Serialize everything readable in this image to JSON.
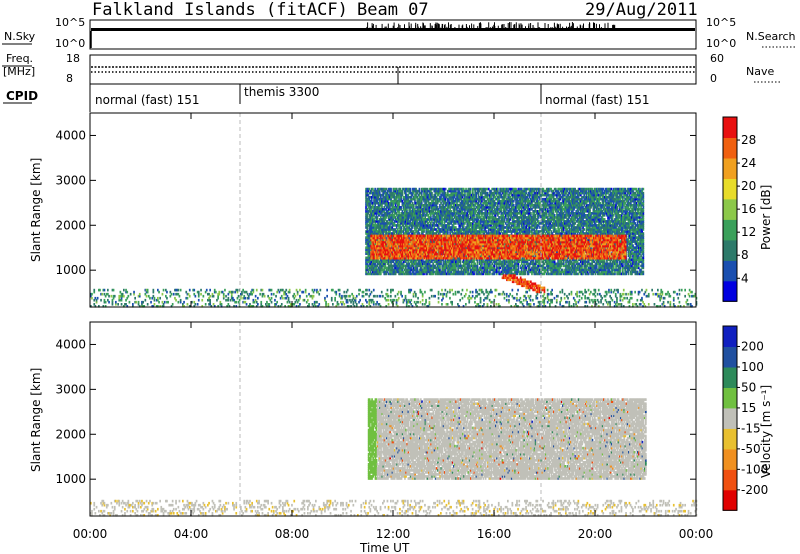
{
  "header": {
    "site": "Falkland Islands (fitACF)",
    "beam": "Beam 07",
    "date": "29/Aug/2011"
  },
  "top_panels": {
    "nsky": {
      "label": "N.Sky",
      "right_label": "N.Search",
      "ticks_left": [
        "10^5",
        "10^0"
      ],
      "ticks_right": [
        "10^5",
        "10^0"
      ]
    },
    "freq": {
      "label_line1": "Freq.",
      "label_line2": "[MHz]",
      "right_label": "Nave",
      "ticks_left": [
        "18",
        "8"
      ],
      "ticks_right": [
        "60",
        "0"
      ]
    },
    "cpid": {
      "label": "CPID",
      "segments": [
        {
          "label": "normal (fast) 151",
          "start_hour": 0,
          "end_hour": 6
        },
        {
          "label": "themis 3300",
          "start_hour": 6,
          "end_hour": 18
        },
        {
          "label": "normal (fast) 151",
          "start_hour": 18,
          "end_hour": 24
        }
      ]
    }
  },
  "chart_data": [
    {
      "type": "heatmap",
      "title": "",
      "quantity": "Power",
      "xlabel": "Time UT",
      "ylabel": "Slant Range [km]",
      "colorbar_label": "Power [dB]",
      "colorbar_ticks": [
        "28",
        "24",
        "20",
        "16",
        "12",
        "8",
        "4"
      ],
      "colorbar_range": [
        0,
        30
      ],
      "colors": [
        "#0000e0",
        "#1a4fb0",
        "#2d7a6a",
        "#3aa05a",
        "#8cc84a",
        "#e8dc2a",
        "#f0a020",
        "#f06010",
        "#e81010"
      ],
      "xlim": [
        0,
        24
      ],
      "ylim": [
        180,
        4500
      ],
      "y_ticks": [
        "1000",
        "2000",
        "3000",
        "4000"
      ],
      "regions": [
        {
          "name": "scatter band",
          "t0": 10.9,
          "t1": 21.9,
          "r_low": 900,
          "r_high": 2800,
          "mean": 8
        },
        {
          "name": "strong echo ridge",
          "t0": 11.1,
          "t1": 21.2,
          "r_low": 1250,
          "r_high": 1750,
          "mean": 26
        },
        {
          "name": "descending echo",
          "t0": 16.3,
          "t1": 18.0,
          "r_low": 500,
          "r_high": 900,
          "mean": 27
        },
        {
          "name": "near-range ground scatter",
          "t0": 0,
          "t1": 24,
          "r_low": 180,
          "r_high": 550,
          "mean": 10
        }
      ]
    },
    {
      "type": "heatmap",
      "title": "",
      "quantity": "Velocity",
      "xlabel": "Time UT",
      "ylabel": "Slant Range [km]",
      "colorbar_label": "Velocity [m s⁻¹]",
      "colorbar_ticks": [
        "200",
        "100",
        "50",
        "15",
        "-15",
        "-50",
        "-100",
        "-200"
      ],
      "colorbar_range": [
        -250,
        250
      ],
      "colors": [
        "#e00000",
        "#f05010",
        "#f09020",
        "#e8c030",
        "#c0c0b8",
        "#70c040",
        "#2d8a5a",
        "#2050a0",
        "#1020c0"
      ],
      "xlim": [
        0,
        24
      ],
      "ylim": [
        180,
        4500
      ],
      "y_ticks": [
        "1000",
        "2000",
        "3000",
        "4000"
      ],
      "regions": [
        {
          "name": "ground scatter body",
          "t0": 11.0,
          "t1": 22.0,
          "r_low": 1000,
          "r_high": 2800,
          "mean": 0
        },
        {
          "name": "near-range scatter",
          "t0": 0,
          "t1": 24,
          "r_low": 180,
          "r_high": 500,
          "mean": -20
        }
      ]
    }
  ],
  "x_axis": {
    "label": "Time UT",
    "ticks": [
      "00:00",
      "04:00",
      "08:00",
      "12:00",
      "16:00",
      "20:00",
      "00:00"
    ]
  }
}
